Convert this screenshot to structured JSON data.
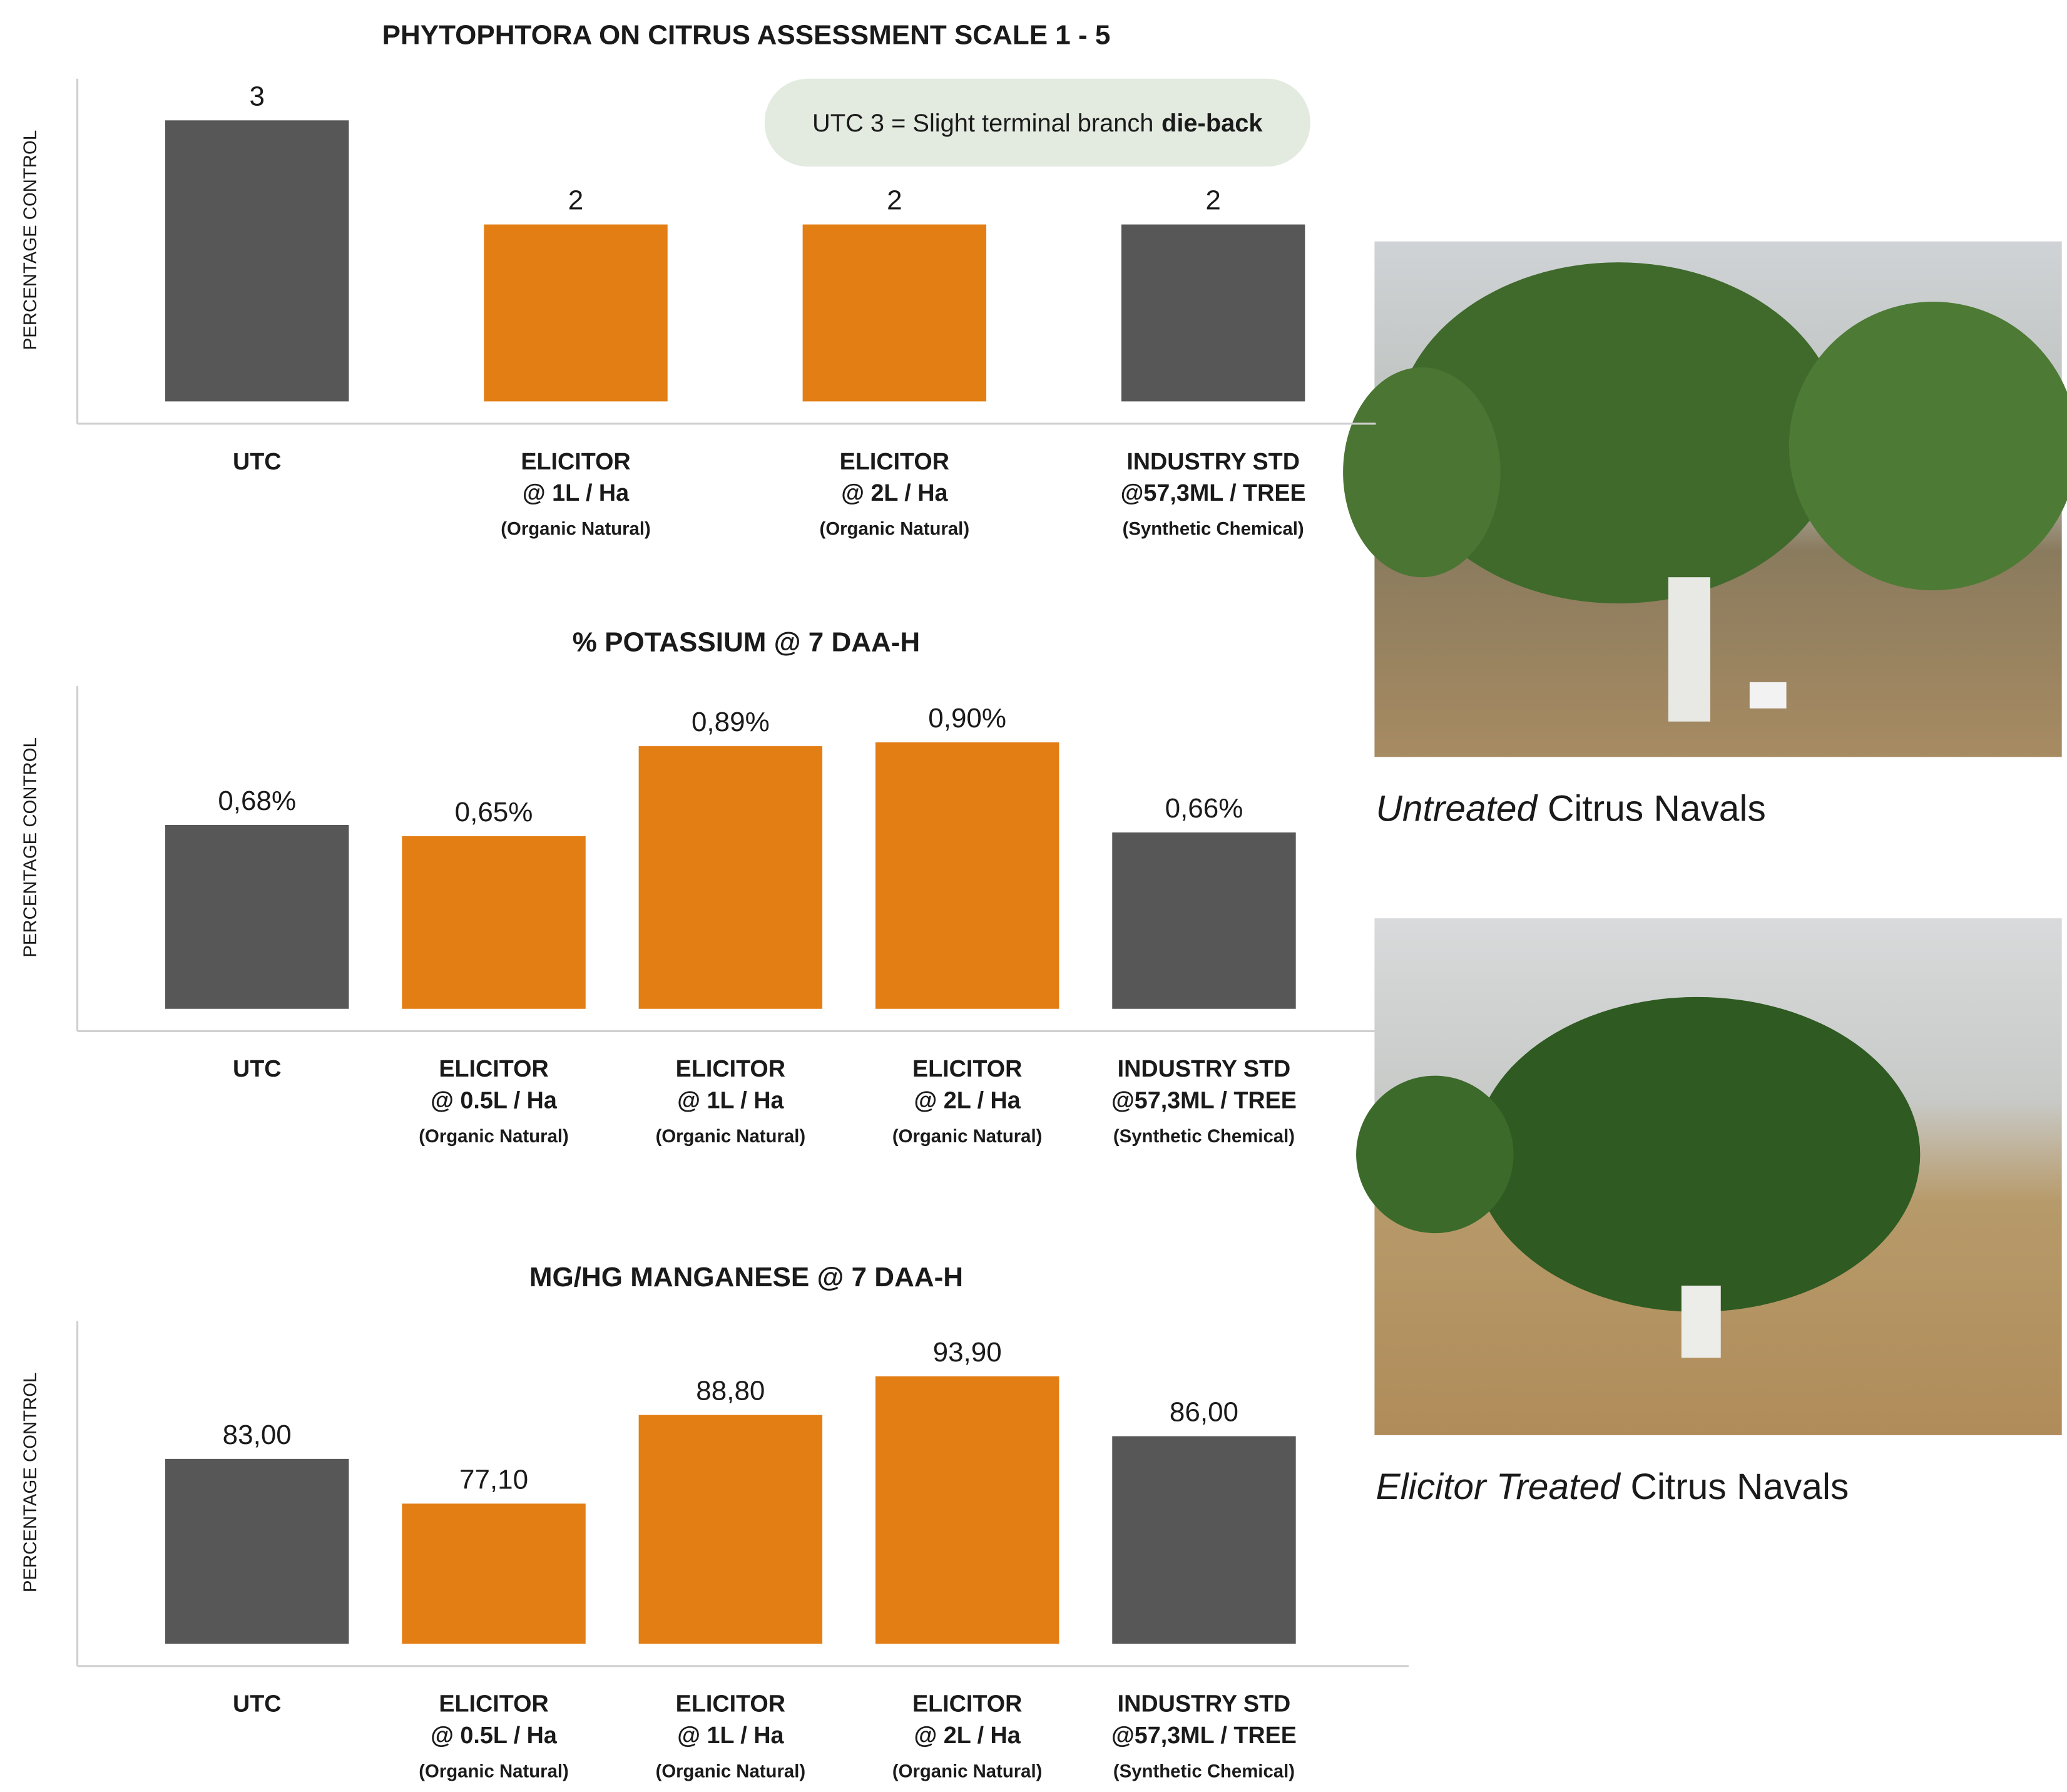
{
  "chart_data": [
    {
      "type": "bar",
      "title": "PHYTOPHTORA ON CITRUS ASSESSMENT SCALE 1 - 5",
      "ylabel": "PERCENTAGE CONTROL",
      "categories": [
        [
          "UTC"
        ],
        [
          "ELICITOR",
          "@ 1L / Ha",
          "(Organic Natural)"
        ],
        [
          "ELICITOR",
          "@ 2L / Ha",
          "(Organic Natural)"
        ],
        [
          "INDUSTRY STD",
          "@57,3ML / TREE",
          "(Synthetic Chemical)"
        ]
      ],
      "values": [
        3,
        2,
        2,
        2
      ],
      "colors": [
        "#575757",
        "#e37e14",
        "#e37e14",
        "#575757"
      ],
      "ylim": [
        0.3,
        3.4
      ],
      "annotation": {
        "text": "UTC 3 = Slight terminal branch",
        "emphasis": "die-back"
      }
    },
    {
      "type": "bar",
      "title": "% POTASSIUM @ 7 DAA-H",
      "ylabel": "PERCENTAGE CONTROL",
      "categories": [
        [
          "UTC"
        ],
        [
          "ELICITOR",
          "@ 0.5L / Ha",
          "(Organic Natural)"
        ],
        [
          "ELICITOR",
          "@ 1L / Ha",
          "(Organic Natural)"
        ],
        [
          "ELICITOR",
          "@ 2L / Ha",
          "(Organic Natural)"
        ],
        [
          "INDUSTRY STD",
          "@57,3ML / TREE",
          "(Synthetic Chemical)"
        ]
      ],
      "values": [
        0.68,
        0.65,
        0.89,
        0.9,
        0.66
      ],
      "value_labels": [
        "0,68%",
        "0,65%",
        "0,89%",
        "0,90%",
        "0,66%"
      ],
      "colors": [
        "#575757",
        "#e37e14",
        "#e37e14",
        "#e37e14",
        "#575757"
      ],
      "ylim": [
        0.19,
        1.05
      ]
    },
    {
      "type": "bar",
      "title": "MG/HG MANGANESE @ 7 DAA-H",
      "ylabel": "PERCENTAGE CONTROL",
      "categories": [
        [
          "UTC"
        ],
        [
          "ELICITOR",
          "@ 0.5L / Ha",
          "(Organic Natural)"
        ],
        [
          "ELICITOR",
          "@ 1L / Ha",
          "(Organic Natural)"
        ],
        [
          "ELICITOR",
          "@ 2L / Ha",
          "(Organic Natural)"
        ],
        [
          "INDUSTRY STD",
          "@57,3ML / TREE",
          "(Synthetic Chemical)"
        ]
      ],
      "values": [
        83.0,
        77.1,
        88.8,
        93.9,
        86.0
      ],
      "value_labels": [
        "83,00",
        "77,10",
        "88,80",
        "93,90",
        "86,00"
      ],
      "colors": [
        "#575757",
        "#e37e14",
        "#e37e14",
        "#e37e14",
        "#575757"
      ],
      "ylim": [
        58.6,
        101.2
      ]
    }
  ],
  "photos": [
    {
      "emphasis": "Untreated",
      "text": "Citrus Navals"
    },
    {
      "emphasis": "Elicitor Treated",
      "text": "Citrus Navals"
    }
  ]
}
